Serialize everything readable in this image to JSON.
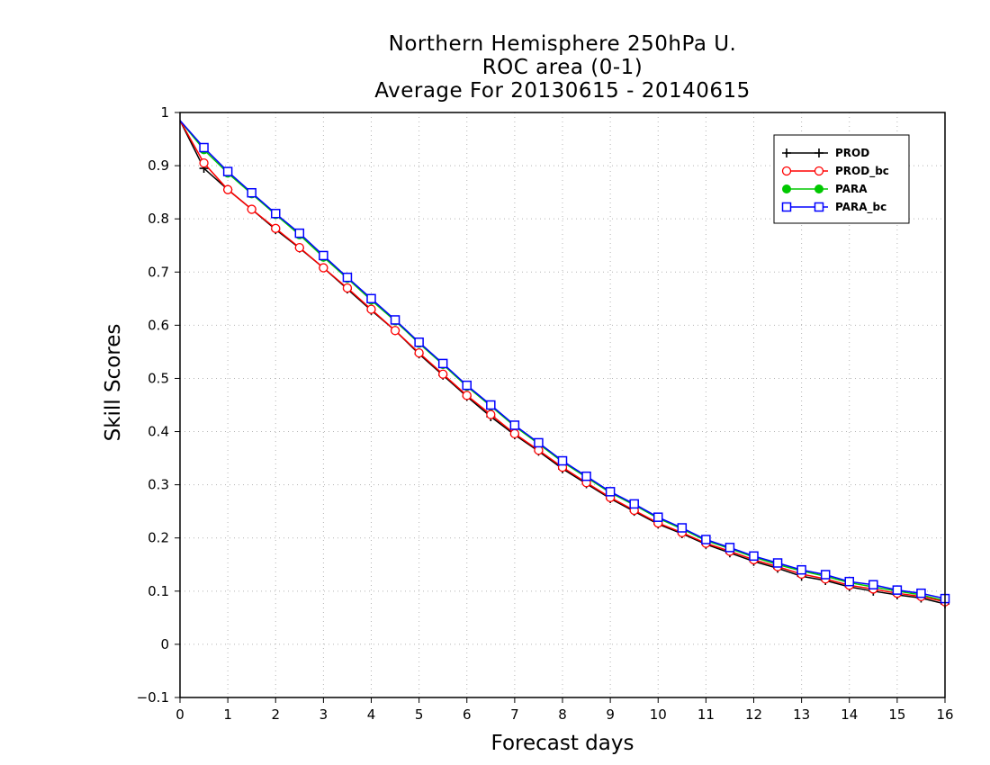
{
  "chart_data": {
    "type": "line",
    "title": [
      "Northern Hemisphere 250hPa U.",
      "ROC area (0-1)",
      "Average For 20130615 - 20140615"
    ],
    "xlabel": "Forecast days",
    "ylabel": "Skill Scores",
    "xlim": [
      0,
      16
    ],
    "ylim": [
      -0.1,
      1
    ],
    "xticks": [
      0,
      1,
      2,
      3,
      4,
      5,
      6,
      7,
      8,
      9,
      10,
      11,
      12,
      13,
      14,
      15,
      16
    ],
    "yticks": [
      -0.1,
      0,
      0.1,
      0.2,
      0.3,
      0.4,
      0.5,
      0.6,
      0.7,
      0.8,
      0.9,
      1
    ],
    "ytick_labels": [
      "−0.1",
      "0",
      "0.1",
      "0.2",
      "0.3",
      "0.4",
      "0.5",
      "0.6",
      "0.7",
      "0.8",
      "0.9",
      "1"
    ],
    "grid": true,
    "legend_position": "top-right",
    "x": [
      0,
      0.5,
      1,
      1.5,
      2,
      2.5,
      3,
      3.5,
      4,
      4.5,
      5,
      5.5,
      6,
      6.5,
      7,
      7.5,
      8,
      8.5,
      9,
      9.5,
      10,
      10.5,
      11,
      11.5,
      12,
      12.5,
      13,
      13.5,
      14,
      14.5,
      15,
      15.5,
      16
    ],
    "series": [
      {
        "name": "PROD",
        "color": "#000000",
        "marker": "plus",
        "values": [
          0.985,
          0.895,
          0.855,
          0.818,
          0.78,
          0.745,
          0.708,
          0.668,
          0.628,
          0.59,
          0.546,
          0.506,
          0.466,
          0.428,
          0.394,
          0.363,
          0.33,
          0.302,
          0.274,
          0.25,
          0.226,
          0.208,
          0.188,
          0.172,
          0.156,
          0.143,
          0.128,
          0.12,
          0.108,
          0.1,
          0.093,
          0.087,
          0.076
        ]
      },
      {
        "name": "PROD_bc",
        "color": "#ff0000",
        "marker": "circle",
        "values": [
          0.985,
          0.905,
          0.855,
          0.818,
          0.782,
          0.746,
          0.708,
          0.67,
          0.63,
          0.59,
          0.548,
          0.508,
          0.468,
          0.432,
          0.396,
          0.365,
          0.333,
          0.304,
          0.276,
          0.252,
          0.228,
          0.21,
          0.19,
          0.175,
          0.159,
          0.146,
          0.132,
          0.123,
          0.111,
          0.104,
          0.096,
          0.09,
          0.08
        ]
      },
      {
        "name": "PARA",
        "color": "#00c800",
        "marker": "dot",
        "values": [
          0.985,
          0.93,
          0.886,
          0.847,
          0.808,
          0.77,
          0.728,
          0.688,
          0.647,
          0.608,
          0.566,
          0.526,
          0.485,
          0.448,
          0.41,
          0.377,
          0.343,
          0.314,
          0.285,
          0.262,
          0.237,
          0.217,
          0.195,
          0.18,
          0.164,
          0.15,
          0.138,
          0.128,
          0.116,
          0.108,
          0.1,
          0.093,
          0.082
        ]
      },
      {
        "name": "PARA_bc",
        "color": "#0000ff",
        "marker": "square",
        "values": [
          0.985,
          0.934,
          0.889,
          0.849,
          0.81,
          0.773,
          0.731,
          0.69,
          0.65,
          0.61,
          0.568,
          0.528,
          0.487,
          0.45,
          0.412,
          0.379,
          0.345,
          0.316,
          0.287,
          0.264,
          0.239,
          0.219,
          0.197,
          0.182,
          0.166,
          0.153,
          0.14,
          0.131,
          0.118,
          0.112,
          0.102,
          0.096,
          0.086
        ]
      }
    ]
  }
}
